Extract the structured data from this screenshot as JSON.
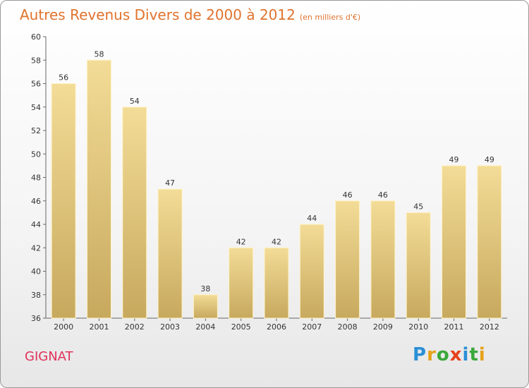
{
  "title": "Autres Revenus Divers de 2000 à 2012",
  "unit_note": "(en milliers d'€)",
  "commune": "GIGNAT",
  "logo": {
    "letters": [
      "P",
      "r",
      "o",
      "x",
      "i",
      "t",
      "i"
    ],
    "colors": [
      "#2a8fd6",
      "#e6a21a",
      "#3aa83a",
      "#e6421a",
      "#2a8fd6",
      "#3aa83a",
      "#e6a21a"
    ]
  },
  "colors": {
    "bar_top": "#f3dc97",
    "bar_bottom": "#c7a95e",
    "title": "#e0732e",
    "commune": "#e0335a"
  },
  "chart_data": {
    "type": "bar",
    "title": "Autres Revenus Divers de 2000 à 2012",
    "subtitle": "(en milliers d'€)",
    "categories": [
      "2000",
      "2001",
      "2002",
      "2003",
      "2004",
      "2005",
      "2006",
      "2007",
      "2008",
      "2009",
      "2010",
      "2011",
      "2012"
    ],
    "values": [
      56,
      58,
      54,
      47,
      38,
      42,
      42,
      44,
      46,
      46,
      45,
      49,
      49
    ],
    "ylim": [
      36,
      60
    ],
    "yticks": [
      36,
      38,
      40,
      42,
      44,
      46,
      48,
      50,
      52,
      54,
      56,
      58,
      60
    ],
    "grid": false,
    "data_labels": true
  }
}
